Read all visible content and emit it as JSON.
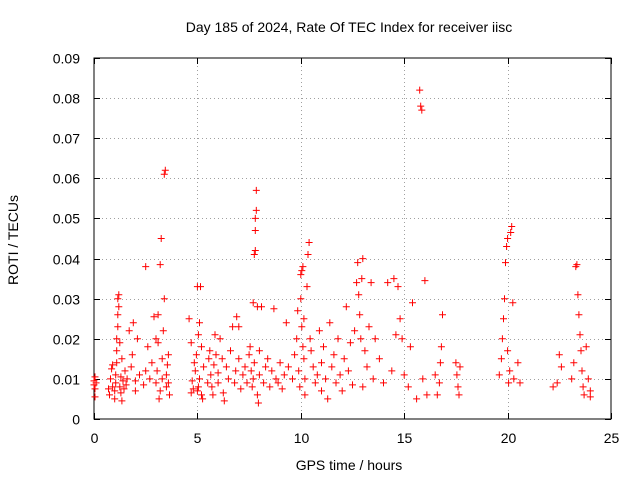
{
  "chart_data": {
    "type": "scatter",
    "title": "Day 185 of 2024, Rate Of TEC Index for receiver iisc",
    "xlabel": "GPS time / hours",
    "ylabel": "ROTI / TECUs",
    "xlim": [
      0,
      25
    ],
    "ylim": [
      0,
      0.09
    ],
    "x_ticks": [
      0,
      5,
      10,
      15,
      20,
      25
    ],
    "x_tick_labels": [
      "0",
      "5",
      "10",
      "15",
      "20",
      "25"
    ],
    "y_ticks": [
      0,
      0.01,
      0.02,
      0.03,
      0.04,
      0.05,
      0.06,
      0.07,
      0.08,
      0.09
    ],
    "y_tick_labels": [
      "0",
      "0.01",
      "0.02",
      "0.03",
      "0.04",
      "0.05",
      "0.06",
      "0.07",
      "0.08",
      "0.09"
    ],
    "grid": true,
    "marker": "+",
    "marker_color": "#ff0000",
    "series": [
      {
        "name": "ROTI",
        "points": [
          [
            0.0,
            0.0095
          ],
          [
            0.0,
            0.0085
          ],
          [
            0.05,
            0.0105
          ],
          [
            0.05,
            0.0075
          ],
          [
            0.05,
            0.0055
          ],
          [
            0.1,
            0.009
          ],
          [
            0.7,
            0.0075
          ],
          [
            0.75,
            0.006
          ],
          [
            0.8,
            0.01
          ],
          [
            0.85,
            0.0125
          ],
          [
            0.9,
            0.008
          ],
          [
            0.9,
            0.0135
          ],
          [
            1.0,
            0.005
          ],
          [
            1.0,
            0.007
          ],
          [
            1.05,
            0.009
          ],
          [
            1.05,
            0.011
          ],
          [
            1.1,
            0.014
          ],
          [
            1.1,
            0.017
          ],
          [
            1.1,
            0.02
          ],
          [
            1.15,
            0.023
          ],
          [
            1.15,
            0.026
          ],
          [
            1.15,
            0.03
          ],
          [
            1.2,
            0.031
          ],
          [
            1.2,
            0.028
          ],
          [
            1.25,
            0.019
          ],
          [
            1.25,
            0.008
          ],
          [
            1.3,
            0.0065
          ],
          [
            1.3,
            0.0105
          ],
          [
            1.35,
            0.015
          ],
          [
            1.35,
            0.0045
          ],
          [
            1.4,
            0.0095
          ],
          [
            1.45,
            0.0075
          ],
          [
            1.5,
            0.012
          ],
          [
            1.55,
            0.0085
          ],
          [
            1.6,
            0.01
          ],
          [
            1.7,
            0.022
          ],
          [
            1.8,
            0.013
          ],
          [
            1.85,
            0.016
          ],
          [
            1.9,
            0.024
          ],
          [
            2.0,
            0.007
          ],
          [
            2.0,
            0.0095
          ],
          [
            2.1,
            0.02
          ],
          [
            2.2,
            0.011
          ],
          [
            2.4,
            0.0085
          ],
          [
            2.5,
            0.012
          ],
          [
            2.5,
            0.038
          ],
          [
            2.6,
            0.018
          ],
          [
            2.7,
            0.01
          ],
          [
            2.8,
            0.014
          ],
          [
            2.9,
            0.0255
          ],
          [
            3.0,
            0.02
          ],
          [
            3.0,
            0.009
          ],
          [
            3.05,
            0.012
          ],
          [
            3.1,
            0.019
          ],
          [
            3.1,
            0.026
          ],
          [
            3.15,
            0.005
          ],
          [
            3.2,
            0.007
          ],
          [
            3.2,
            0.0385
          ],
          [
            3.25,
            0.045
          ],
          [
            3.3,
            0.01
          ],
          [
            3.3,
            0.015
          ],
          [
            3.35,
            0.022
          ],
          [
            3.4,
            0.03
          ],
          [
            3.4,
            0.061
          ],
          [
            3.45,
            0.062
          ],
          [
            3.5,
            0.008
          ],
          [
            3.5,
            0.011
          ],
          [
            3.55,
            0.0135
          ],
          [
            3.6,
            0.016
          ],
          [
            3.6,
            0.009
          ],
          [
            3.65,
            0.006
          ],
          [
            4.6,
            0.025
          ],
          [
            4.7,
            0.0065
          ],
          [
            4.7,
            0.019
          ],
          [
            4.75,
            0.0095
          ],
          [
            4.8,
            0.0075
          ],
          [
            4.85,
            0.014
          ],
          [
            4.9,
            0.012
          ],
          [
            4.95,
            0.016
          ],
          [
            5.0,
            0.007
          ],
          [
            5.0,
            0.033
          ],
          [
            5.05,
            0.021
          ],
          [
            5.05,
            0.008
          ],
          [
            5.1,
            0.024
          ],
          [
            5.1,
            0.01
          ],
          [
            5.15,
            0.033
          ],
          [
            5.2,
            0.018
          ],
          [
            5.2,
            0.006
          ],
          [
            5.25,
            0.005
          ],
          [
            5.3,
            0.013
          ],
          [
            5.5,
            0.009
          ],
          [
            5.55,
            0.015
          ],
          [
            5.6,
            0.017
          ],
          [
            5.65,
            0.011
          ],
          [
            5.7,
            0.008
          ],
          [
            5.75,
            0.006
          ],
          [
            5.8,
            0.0135
          ],
          [
            5.85,
            0.021
          ],
          [
            5.9,
            0.016
          ],
          [
            6.0,
            0.0115
          ],
          [
            6.0,
            0.009
          ],
          [
            6.1,
            0.02
          ],
          [
            6.2,
            0.015
          ],
          [
            6.25,
            0.0065
          ],
          [
            6.3,
            0.0045
          ],
          [
            6.4,
            0.013
          ],
          [
            6.5,
            0.01
          ],
          [
            6.6,
            0.017
          ],
          [
            6.7,
            0.023
          ],
          [
            6.8,
            0.009
          ],
          [
            6.85,
            0.012
          ],
          [
            6.9,
            0.0255
          ],
          [
            7.0,
            0.015
          ],
          [
            7.0,
            0.023
          ],
          [
            7.1,
            0.0075
          ],
          [
            7.2,
            0.011
          ],
          [
            7.3,
            0.013
          ],
          [
            7.4,
            0.009
          ],
          [
            7.5,
            0.016
          ],
          [
            7.55,
            0.018
          ],
          [
            7.6,
            0.012
          ],
          [
            7.65,
            0.008
          ],
          [
            7.7,
            0.029
          ],
          [
            7.7,
            0.01
          ],
          [
            7.75,
            0.014
          ],
          [
            7.75,
            0.041
          ],
          [
            7.8,
            0.042
          ],
          [
            7.8,
            0.047
          ],
          [
            7.8,
            0.05
          ],
          [
            7.85,
            0.052
          ],
          [
            7.85,
            0.057
          ],
          [
            7.9,
            0.028
          ],
          [
            7.9,
            0.006
          ],
          [
            7.95,
            0.004
          ],
          [
            8.0,
            0.011
          ],
          [
            8.0,
            0.017
          ],
          [
            8.1,
            0.028
          ],
          [
            8.2,
            0.009
          ],
          [
            8.3,
            0.013
          ],
          [
            8.4,
            0.015
          ],
          [
            8.5,
            0.008
          ],
          [
            8.6,
            0.012
          ],
          [
            8.7,
            0.0275
          ],
          [
            8.8,
            0.01
          ],
          [
            8.9,
            0.009
          ],
          [
            9.0,
            0.014
          ],
          [
            9.1,
            0.0075
          ],
          [
            9.2,
            0.011
          ],
          [
            9.3,
            0.024
          ],
          [
            9.4,
            0.013
          ],
          [
            9.6,
            0.01
          ],
          [
            9.7,
            0.016
          ],
          [
            9.8,
            0.02
          ],
          [
            9.85,
            0.027
          ],
          [
            9.9,
            0.012
          ],
          [
            9.95,
            0.008
          ],
          [
            10.0,
            0.03
          ],
          [
            10.0,
            0.036
          ],
          [
            10.05,
            0.037
          ],
          [
            10.05,
            0.023
          ],
          [
            10.1,
            0.038
          ],
          [
            10.1,
            0.018
          ],
          [
            10.15,
            0.015
          ],
          [
            10.15,
            0.025
          ],
          [
            10.2,
            0.01
          ],
          [
            10.2,
            0.006
          ],
          [
            10.3,
            0.033
          ],
          [
            10.35,
            0.041
          ],
          [
            10.4,
            0.044
          ],
          [
            10.45,
            0.02
          ],
          [
            10.5,
            0.017
          ],
          [
            10.6,
            0.013
          ],
          [
            10.7,
            0.009
          ],
          [
            10.8,
            0.011
          ],
          [
            10.9,
            0.022
          ],
          [
            11.0,
            0.014
          ],
          [
            11.0,
            0.007
          ],
          [
            11.1,
            0.018
          ],
          [
            11.2,
            0.01
          ],
          [
            11.3,
            0.005
          ],
          [
            11.4,
            0.024
          ],
          [
            11.5,
            0.013
          ],
          [
            11.6,
            0.016
          ],
          [
            11.7,
            0.009
          ],
          [
            11.8,
            0.02
          ],
          [
            11.9,
            0.011
          ],
          [
            12.0,
            0.007
          ],
          [
            12.1,
            0.015
          ],
          [
            12.2,
            0.028
          ],
          [
            12.3,
            0.012
          ],
          [
            12.4,
            0.019
          ],
          [
            12.5,
            0.0085
          ],
          [
            12.6,
            0.022
          ],
          [
            12.7,
            0.034
          ],
          [
            12.75,
            0.039
          ],
          [
            12.8,
            0.031
          ],
          [
            12.85,
            0.026
          ],
          [
            12.9,
            0.02
          ],
          [
            12.95,
            0.035
          ],
          [
            13.0,
            0.04
          ],
          [
            13.0,
            0.008
          ],
          [
            13.1,
            0.017
          ],
          [
            13.2,
            0.013
          ],
          [
            13.3,
            0.023
          ],
          [
            13.4,
            0.034
          ],
          [
            13.5,
            0.01
          ],
          [
            13.6,
            0.02
          ],
          [
            13.8,
            0.015
          ],
          [
            14.0,
            0.009
          ],
          [
            14.2,
            0.034
          ],
          [
            14.4,
            0.012
          ],
          [
            14.5,
            0.035
          ],
          [
            14.6,
            0.021
          ],
          [
            14.7,
            0.033
          ],
          [
            14.8,
            0.025
          ],
          [
            14.9,
            0.02
          ],
          [
            15.0,
            0.011
          ],
          [
            15.2,
            0.008
          ],
          [
            15.3,
            0.018
          ],
          [
            15.4,
            0.029
          ],
          [
            15.6,
            0.005
          ],
          [
            15.75,
            0.082
          ],
          [
            15.8,
            0.078
          ],
          [
            15.85,
            0.077
          ],
          [
            15.9,
            0.01
          ],
          [
            16.0,
            0.0345
          ],
          [
            16.1,
            0.006
          ],
          [
            16.5,
            0.011
          ],
          [
            16.6,
            0.006
          ],
          [
            16.7,
            0.009
          ],
          [
            16.75,
            0.014
          ],
          [
            16.8,
            0.018
          ],
          [
            16.85,
            0.026
          ],
          [
            17.5,
            0.014
          ],
          [
            17.55,
            0.011
          ],
          [
            17.6,
            0.008
          ],
          [
            17.65,
            0.006
          ],
          [
            17.7,
            0.013
          ],
          [
            19.6,
            0.011
          ],
          [
            19.7,
            0.015
          ],
          [
            19.75,
            0.02
          ],
          [
            19.8,
            0.025
          ],
          [
            19.85,
            0.03
          ],
          [
            19.9,
            0.039
          ],
          [
            19.95,
            0.043
          ],
          [
            20.0,
            0.045
          ],
          [
            20.0,
            0.017
          ],
          [
            20.05,
            0.009
          ],
          [
            20.1,
            0.012
          ],
          [
            20.15,
            0.0465
          ],
          [
            20.2,
            0.048
          ],
          [
            20.25,
            0.029
          ],
          [
            20.3,
            0.01
          ],
          [
            20.5,
            0.014
          ],
          [
            20.6,
            0.009
          ],
          [
            22.2,
            0.008
          ],
          [
            22.4,
            0.009
          ],
          [
            22.5,
            0.016
          ],
          [
            22.6,
            0.013
          ],
          [
            23.1,
            0.01
          ],
          [
            23.2,
            0.014
          ],
          [
            23.3,
            0.038
          ],
          [
            23.35,
            0.0385
          ],
          [
            23.4,
            0.031
          ],
          [
            23.45,
            0.026
          ],
          [
            23.5,
            0.021
          ],
          [
            23.55,
            0.017
          ],
          [
            23.6,
            0.012
          ],
          [
            23.65,
            0.008
          ],
          [
            23.7,
            0.006
          ],
          [
            23.8,
            0.018
          ],
          [
            23.9,
            0.01
          ],
          [
            24.0,
            0.007
          ],
          [
            24.0,
            0.0055
          ]
        ]
      }
    ]
  }
}
